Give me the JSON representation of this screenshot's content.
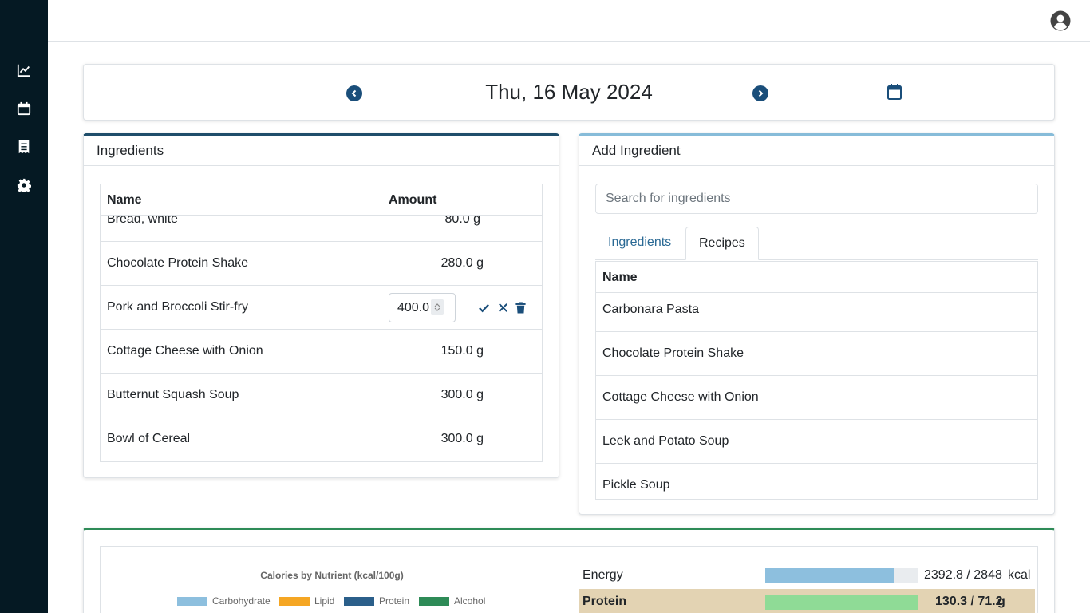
{
  "sidebar": {
    "icons": [
      "chart-line-icon",
      "calendar-icon",
      "receipt-icon",
      "gear-icon"
    ]
  },
  "header": {
    "avatar_icon": "user-circle-icon"
  },
  "date_nav": {
    "date": "Thu, 16 May 2024",
    "prev_icon": "chevron-left-circle-icon",
    "next_icon": "chevron-right-circle-icon",
    "calendar_icon": "calendar-icon"
  },
  "ingredients_panel": {
    "title": "Ingredients",
    "col_name": "Name",
    "col_amount": "Amount",
    "rows": [
      {
        "name": "Bread, white",
        "amount": "80.0 g"
      },
      {
        "name": "Chocolate Protein Shake",
        "amount": "280.0 g"
      },
      {
        "name": "Pork and Broccoli Stir-fry",
        "amount": "400.0",
        "editing": true
      },
      {
        "name": "Cottage Cheese with Onion",
        "amount": "150.0 g"
      },
      {
        "name": "Butternut Squash Soup",
        "amount": "300.0 g"
      },
      {
        "name": "Bowl of Cereal",
        "amount": "300.0 g"
      }
    ],
    "edit_actions": [
      "check-icon",
      "times-icon",
      "trash-icon"
    ]
  },
  "add_panel": {
    "title": "Add Ingredient",
    "search_placeholder": "Search for ingredients",
    "tabs": [
      {
        "label": "Ingredients",
        "active": false
      },
      {
        "label": "Recipes",
        "active": true
      }
    ],
    "col_name": "Name",
    "recipes": [
      "Carbonara Pasta",
      "Chocolate Protein Shake",
      "Cottage Cheese with Onion",
      "Leek and Potato Soup",
      "Pickle Soup"
    ]
  },
  "nutrients": {
    "chart_title": "Calories by Nutrient (kcal/100g)",
    "legend": [
      {
        "label": "Carbohydrate",
        "color": "#8dbfde"
      },
      {
        "label": "Lipid",
        "color": "#f5a623"
      },
      {
        "label": "Protein",
        "color": "#2b5f8a"
      },
      {
        "label": "Alcohol",
        "color": "#2e8b57"
      }
    ],
    "rows": [
      {
        "label": "Energy",
        "value": "2392.8 / 2848",
        "unit": "kcal",
        "fraction": 0.84,
        "bar_color": "#8dbfde",
        "highlight": false
      },
      {
        "label": "Protein",
        "value": "130.3 / 71.2",
        "unit": "g",
        "fraction": 1.0,
        "bar_color": "#8fdb96",
        "highlight": true,
        "highlight_color": "#e3d3b3"
      }
    ]
  },
  "colors": {
    "sidebar_bg": "#051923",
    "accent_dark": "#1a4e7a",
    "ingredients_border": "#1f4e6b",
    "add_border": "#87bcd9",
    "nutrients_border": "#2e8b57"
  }
}
